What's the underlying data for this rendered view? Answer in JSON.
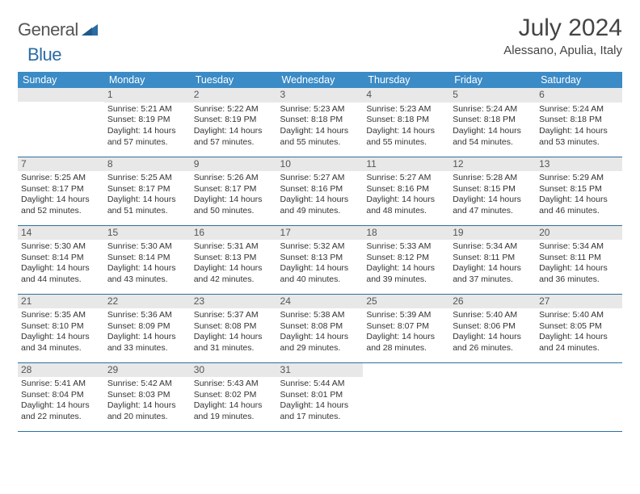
{
  "logo": {
    "part1": "General",
    "part2": "Blue"
  },
  "title": "July 2024",
  "location": "Alessano, Apulia, Italy",
  "colors": {
    "header_bg": "#3b8bc6",
    "header_text": "#ffffff",
    "daynum_bg": "#e8e8e8",
    "row_border": "#2f6fa0",
    "logo_gray": "#555555",
    "logo_blue": "#2b6ca3",
    "text": "#333333"
  },
  "day_headers": [
    "Sunday",
    "Monday",
    "Tuesday",
    "Wednesday",
    "Thursday",
    "Friday",
    "Saturday"
  ],
  "weeks": [
    [
      {
        "blank": true
      },
      {
        "num": "1",
        "sunrise": "Sunrise: 5:21 AM",
        "sunset": "Sunset: 8:19 PM",
        "day1": "Daylight: 14 hours",
        "day2": "and 57 minutes."
      },
      {
        "num": "2",
        "sunrise": "Sunrise: 5:22 AM",
        "sunset": "Sunset: 8:19 PM",
        "day1": "Daylight: 14 hours",
        "day2": "and 57 minutes."
      },
      {
        "num": "3",
        "sunrise": "Sunrise: 5:23 AM",
        "sunset": "Sunset: 8:18 PM",
        "day1": "Daylight: 14 hours",
        "day2": "and 55 minutes."
      },
      {
        "num": "4",
        "sunrise": "Sunrise: 5:23 AM",
        "sunset": "Sunset: 8:18 PM",
        "day1": "Daylight: 14 hours",
        "day2": "and 55 minutes."
      },
      {
        "num": "5",
        "sunrise": "Sunrise: 5:24 AM",
        "sunset": "Sunset: 8:18 PM",
        "day1": "Daylight: 14 hours",
        "day2": "and 54 minutes."
      },
      {
        "num": "6",
        "sunrise": "Sunrise: 5:24 AM",
        "sunset": "Sunset: 8:18 PM",
        "day1": "Daylight: 14 hours",
        "day2": "and 53 minutes."
      }
    ],
    [
      {
        "num": "7",
        "sunrise": "Sunrise: 5:25 AM",
        "sunset": "Sunset: 8:17 PM",
        "day1": "Daylight: 14 hours",
        "day2": "and 52 minutes."
      },
      {
        "num": "8",
        "sunrise": "Sunrise: 5:25 AM",
        "sunset": "Sunset: 8:17 PM",
        "day1": "Daylight: 14 hours",
        "day2": "and 51 minutes."
      },
      {
        "num": "9",
        "sunrise": "Sunrise: 5:26 AM",
        "sunset": "Sunset: 8:17 PM",
        "day1": "Daylight: 14 hours",
        "day2": "and 50 minutes."
      },
      {
        "num": "10",
        "sunrise": "Sunrise: 5:27 AM",
        "sunset": "Sunset: 8:16 PM",
        "day1": "Daylight: 14 hours",
        "day2": "and 49 minutes."
      },
      {
        "num": "11",
        "sunrise": "Sunrise: 5:27 AM",
        "sunset": "Sunset: 8:16 PM",
        "day1": "Daylight: 14 hours",
        "day2": "and 48 minutes."
      },
      {
        "num": "12",
        "sunrise": "Sunrise: 5:28 AM",
        "sunset": "Sunset: 8:15 PM",
        "day1": "Daylight: 14 hours",
        "day2": "and 47 minutes."
      },
      {
        "num": "13",
        "sunrise": "Sunrise: 5:29 AM",
        "sunset": "Sunset: 8:15 PM",
        "day1": "Daylight: 14 hours",
        "day2": "and 46 minutes."
      }
    ],
    [
      {
        "num": "14",
        "sunrise": "Sunrise: 5:30 AM",
        "sunset": "Sunset: 8:14 PM",
        "day1": "Daylight: 14 hours",
        "day2": "and 44 minutes."
      },
      {
        "num": "15",
        "sunrise": "Sunrise: 5:30 AM",
        "sunset": "Sunset: 8:14 PM",
        "day1": "Daylight: 14 hours",
        "day2": "and 43 minutes."
      },
      {
        "num": "16",
        "sunrise": "Sunrise: 5:31 AM",
        "sunset": "Sunset: 8:13 PM",
        "day1": "Daylight: 14 hours",
        "day2": "and 42 minutes."
      },
      {
        "num": "17",
        "sunrise": "Sunrise: 5:32 AM",
        "sunset": "Sunset: 8:13 PM",
        "day1": "Daylight: 14 hours",
        "day2": "and 40 minutes."
      },
      {
        "num": "18",
        "sunrise": "Sunrise: 5:33 AM",
        "sunset": "Sunset: 8:12 PM",
        "day1": "Daylight: 14 hours",
        "day2": "and 39 minutes."
      },
      {
        "num": "19",
        "sunrise": "Sunrise: 5:34 AM",
        "sunset": "Sunset: 8:11 PM",
        "day1": "Daylight: 14 hours",
        "day2": "and 37 minutes."
      },
      {
        "num": "20",
        "sunrise": "Sunrise: 5:34 AM",
        "sunset": "Sunset: 8:11 PM",
        "day1": "Daylight: 14 hours",
        "day2": "and 36 minutes."
      }
    ],
    [
      {
        "num": "21",
        "sunrise": "Sunrise: 5:35 AM",
        "sunset": "Sunset: 8:10 PM",
        "day1": "Daylight: 14 hours",
        "day2": "and 34 minutes."
      },
      {
        "num": "22",
        "sunrise": "Sunrise: 5:36 AM",
        "sunset": "Sunset: 8:09 PM",
        "day1": "Daylight: 14 hours",
        "day2": "and 33 minutes."
      },
      {
        "num": "23",
        "sunrise": "Sunrise: 5:37 AM",
        "sunset": "Sunset: 8:08 PM",
        "day1": "Daylight: 14 hours",
        "day2": "and 31 minutes."
      },
      {
        "num": "24",
        "sunrise": "Sunrise: 5:38 AM",
        "sunset": "Sunset: 8:08 PM",
        "day1": "Daylight: 14 hours",
        "day2": "and 29 minutes."
      },
      {
        "num": "25",
        "sunrise": "Sunrise: 5:39 AM",
        "sunset": "Sunset: 8:07 PM",
        "day1": "Daylight: 14 hours",
        "day2": "and 28 minutes."
      },
      {
        "num": "26",
        "sunrise": "Sunrise: 5:40 AM",
        "sunset": "Sunset: 8:06 PM",
        "day1": "Daylight: 14 hours",
        "day2": "and 26 minutes."
      },
      {
        "num": "27",
        "sunrise": "Sunrise: 5:40 AM",
        "sunset": "Sunset: 8:05 PM",
        "day1": "Daylight: 14 hours",
        "day2": "and 24 minutes."
      }
    ],
    [
      {
        "num": "28",
        "sunrise": "Sunrise: 5:41 AM",
        "sunset": "Sunset: 8:04 PM",
        "day1": "Daylight: 14 hours",
        "day2": "and 22 minutes."
      },
      {
        "num": "29",
        "sunrise": "Sunrise: 5:42 AM",
        "sunset": "Sunset: 8:03 PM",
        "day1": "Daylight: 14 hours",
        "day2": "and 20 minutes."
      },
      {
        "num": "30",
        "sunrise": "Sunrise: 5:43 AM",
        "sunset": "Sunset: 8:02 PM",
        "day1": "Daylight: 14 hours",
        "day2": "and 19 minutes."
      },
      {
        "num": "31",
        "sunrise": "Sunrise: 5:44 AM",
        "sunset": "Sunset: 8:01 PM",
        "day1": "Daylight: 14 hours",
        "day2": "and 17 minutes."
      },
      {
        "blank": true,
        "noHead": true
      },
      {
        "blank": true,
        "noHead": true
      },
      {
        "blank": true,
        "noHead": true
      }
    ]
  ]
}
